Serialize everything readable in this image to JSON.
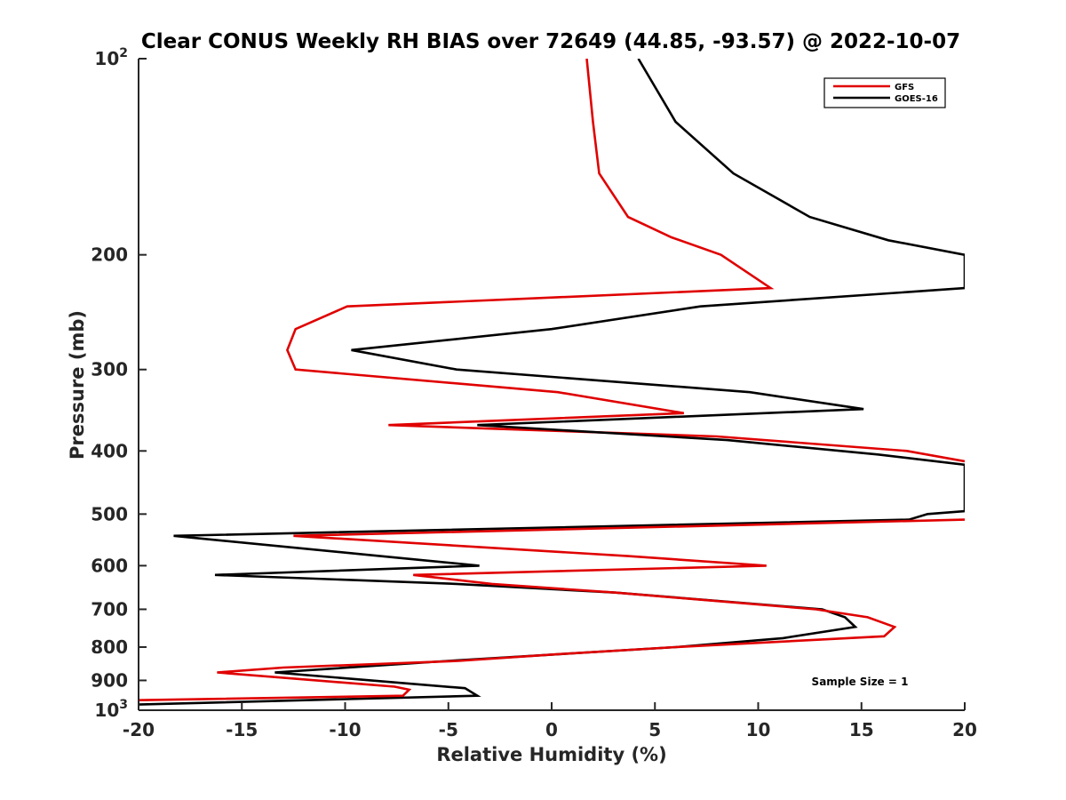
{
  "chart_data": {
    "type": "line",
    "title": "Clear CONUS Weekly RH BIAS over 72649 (44.85, -93.57) @ 2022-10-07",
    "xlabel": "Relative Humidity (%)",
    "ylabel": "Pressure (mb)",
    "xlim": [
      -20,
      20
    ],
    "ylim": [
      100,
      1000
    ],
    "y_scale": "log",
    "y_reversed": true,
    "grid": false,
    "legend_position": "top-right",
    "x_ticks": [
      -20,
      -15,
      -10,
      -5,
      0,
      5,
      10,
      15,
      20
    ],
    "y_ticks": [
      {
        "value": 100,
        "base": "10",
        "exp": "2"
      },
      {
        "value": 200,
        "label": "200"
      },
      {
        "value": 300,
        "label": "300"
      },
      {
        "value": 400,
        "label": "400"
      },
      {
        "value": 500,
        "label": "500"
      },
      {
        "value": 600,
        "label": "600"
      },
      {
        "value": 700,
        "label": "700"
      },
      {
        "value": 800,
        "label": "800"
      },
      {
        "value": 900,
        "label": "900"
      },
      {
        "value": 1000,
        "base": "10",
        "exp": "3"
      }
    ],
    "annotation": "Sample Size = 1",
    "series": [
      {
        "name": "GFS",
        "color": "#e00000",
        "points": [
          [
            1.7,
            100
          ],
          [
            2.0,
            125
          ],
          [
            2.3,
            150
          ],
          [
            3.7,
            175
          ],
          [
            5.8,
            188
          ],
          [
            8.2,
            200
          ],
          [
            10.6,
            225
          ],
          [
            -9.9,
            240
          ],
          [
            -12.4,
            260
          ],
          [
            -12.8,
            280
          ],
          [
            -12.4,
            300
          ],
          [
            0.3,
            325
          ],
          [
            6.4,
            350
          ],
          [
            -7.9,
            365
          ],
          [
            8.0,
            380
          ],
          [
            17.2,
            400
          ],
          [
            20.0,
            415
          ]
        ]
      },
      {
        "name": "GOES-16",
        "color": "#000000",
        "points": [
          [
            4.2,
            100
          ],
          [
            6.0,
            125
          ],
          [
            8.8,
            150
          ],
          [
            12.5,
            175
          ],
          [
            16.3,
            190
          ],
          [
            20.0,
            200
          ],
          [
            20.0,
            225
          ],
          [
            7.2,
            240
          ],
          [
            0.0,
            260
          ],
          [
            -9.7,
            280
          ],
          [
            -4.6,
            300
          ],
          [
            9.6,
            325
          ],
          [
            15.1,
            345
          ],
          [
            -3.6,
            365
          ],
          [
            8.5,
            385
          ],
          [
            15.8,
            405
          ],
          [
            20.0,
            420
          ],
          [
            20.0,
            495
          ],
          [
            18.2,
            500
          ],
          [
            17.3,
            510
          ],
          [
            -18.3,
            540
          ],
          [
            -8.3,
            580
          ],
          [
            -3.5,
            600
          ],
          [
            -16.3,
            620
          ],
          [
            -4.6,
            640
          ],
          [
            3.1,
            660
          ],
          [
            13.1,
            700
          ],
          [
            14.2,
            720
          ],
          [
            14.7,
            745
          ],
          [
            11.2,
            775
          ],
          [
            6.0,
            800
          ],
          [
            -5.0,
            840
          ],
          [
            -13.4,
            875
          ],
          [
            -4.2,
            925
          ],
          [
            -3.6,
            950
          ],
          [
            -20.0,
            980
          ]
        ]
      },
      {
        "name": "GFS",
        "color": "#e00000",
        "points": [
          [
            20.0,
            510
          ],
          [
            -12.5,
            540
          ],
          [
            3.7,
            580
          ],
          [
            10.4,
            600
          ],
          [
            -6.7,
            620
          ],
          [
            -2.9,
            640
          ],
          [
            3.1,
            660
          ],
          [
            12.8,
            700
          ],
          [
            15.3,
            720
          ],
          [
            16.6,
            745
          ],
          [
            16.1,
            770
          ],
          [
            6.0,
            800
          ],
          [
            0.4,
            820
          ],
          [
            -4.5,
            840
          ],
          [
            -13.0,
            860
          ],
          [
            -16.2,
            875
          ],
          [
            -7.6,
            920
          ],
          [
            -6.9,
            930
          ],
          [
            -7.2,
            950
          ],
          [
            -20.0,
            965
          ]
        ]
      }
    ]
  }
}
